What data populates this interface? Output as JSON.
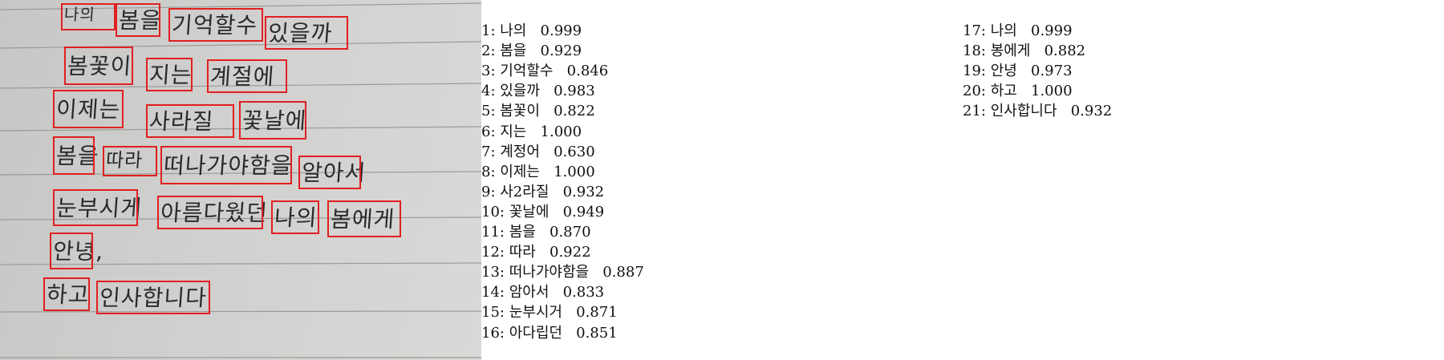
{
  "words": [
    {
      "id": "1",
      "text": "나의",
      "score": "0.999"
    },
    {
      "id": "2",
      "text": "봄을",
      "score": "0.929"
    },
    {
      "id": "3",
      "text": "기억할수",
      "score": "0.846"
    },
    {
      "id": "4",
      "text": "있을까",
      "score": "0.983"
    },
    {
      "id": "5",
      "text": "봄꽃이",
      "score": "0.822"
    },
    {
      "id": "6",
      "text": "지는",
      "score": "1.000"
    },
    {
      "id": "7",
      "text": "계정어",
      "score": "0.630"
    },
    {
      "id": "8",
      "text": "이제는",
      "score": "1.000"
    },
    {
      "id": "9",
      "text": "사2라질",
      "score": "0.932"
    },
    {
      "id": "10",
      "text": "꽃날에",
      "score": "0.949"
    },
    {
      "id": "11",
      "text": "봄을",
      "score": "0.870"
    },
    {
      "id": "12",
      "text": "따라",
      "score": "0.922"
    },
    {
      "id": "13",
      "text": "떠나가야함을",
      "score": "0.887"
    },
    {
      "id": "14",
      "text": "암아서",
      "score": "0.833"
    },
    {
      "id": "15",
      "text": "눈부시거",
      "score": "0.871"
    },
    {
      "id": "16",
      "text": "아다립던",
      "score": "0.851"
    },
    {
      "id": "17",
      "text": "나의",
      "score": "0.999"
    },
    {
      "id": "18",
      "text": "봉에게",
      "score": "0.882"
    },
    {
      "id": "19",
      "text": "안녕",
      "score": "0.973"
    },
    {
      "id": "20",
      "text": "하고",
      "score": "1.000"
    },
    {
      "id": "21",
      "text": "인사합니다",
      "score": "0.932"
    }
  ],
  "handwriting": [
    "나의",
    "봄을",
    "기억할수",
    "있을까",
    "봄꽃이",
    "지는",
    "계절에",
    "이제는",
    "사라질",
    "꽃날에",
    "봄을",
    "따라",
    "떠나가야함을",
    "알아서",
    "눈부시게",
    "아름다웠던",
    "나의",
    "봄에게",
    "안녕,",
    "하고",
    "인사합니다"
  ]
}
